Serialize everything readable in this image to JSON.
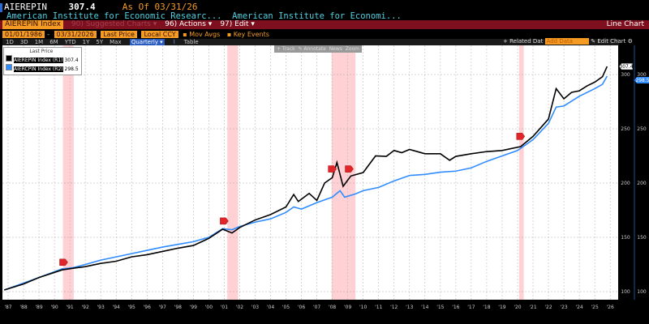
{
  "header": {
    "ticker": "AIEREPIN",
    "last": "307.4",
    "asof_label": "As Of",
    "asof": "03/31/26",
    "desc1": "American Institute for Economic Researc...",
    "desc2": "American Institute for Economi..."
  },
  "menubar": {
    "security": "AIEREPIN Index",
    "suggested": "90) Suggested Charts ▾",
    "actions": "96) Actions ▾",
    "edit": "97) Edit ▾",
    "chart_type": "Line Chart"
  },
  "controls": {
    "start": "01/01/1986",
    "end": "03/31/2026",
    "field": "Last Price",
    "currency": "Local CCY",
    "mov_avgs": "Mov Avgs",
    "key_events": "Key Events",
    "periods": [
      "1D",
      "3D",
      "1M",
      "6M",
      "YTD",
      "1Y",
      "5Y",
      "Max"
    ],
    "frequency": "Quarterly ▾",
    "table": "Table",
    "related": "+ Related Dat",
    "add_data": "Add Data",
    "edit_chart": "✎ Edit Chart"
  },
  "chart_tools": [
    "+ Track",
    "✎ Annotate",
    "News",
    "Zoom"
  ],
  "colors": {
    "series1": "#000000",
    "series2": "#2f8cff",
    "recession": "#ffc8cc",
    "accent": "#f59a23",
    "bar": "#7e0f1e"
  },
  "chart_data": {
    "type": "line",
    "legend_title": "Last Price",
    "legend_placement": "top-left",
    "grid": true,
    "xlim": [
      1986.75,
      2026.25
    ],
    "ylim": [
      93,
      327
    ],
    "x_ticks": [
      "'87",
      "'88",
      "'89",
      "'90",
      "'91",
      "'92",
      "'93",
      "'94",
      "'95",
      "'96",
      "'97",
      "'98",
      "'99",
      "'00",
      "'01",
      "'02",
      "'03",
      "'04",
      "'05",
      "'06",
      "'07",
      "'08",
      "'09",
      "'10",
      "'11",
      "'12",
      "'13",
      "'14",
      "'15",
      "'16",
      "'17",
      "'18",
      "'19",
      "'20",
      "'21",
      "'22",
      "'23",
      "'24",
      "'25",
      "'26"
    ],
    "y_ticks": [
      100,
      150,
      200,
      250,
      300
    ],
    "recessions": [
      [
        1990.55,
        1991.25
      ],
      [
        2001.2,
        2001.9
      ],
      [
        2007.95,
        2009.5
      ],
      [
        2020.1,
        2020.4
      ]
    ],
    "events": [
      {
        "x": 1990.6,
        "y": 127
      },
      {
        "x": 2001.0,
        "y": 165
      },
      {
        "x": 2008.0,
        "y": 213
      },
      {
        "x": 2009.1,
        "y": 213
      },
      {
        "x": 2020.2,
        "y": 243
      }
    ],
    "series": [
      {
        "name": "AIEREPIN Index (R1)",
        "last": "307.4",
        "color": "#000000",
        "points": [
          [
            1986.75,
            101.5
          ],
          [
            1988,
            107
          ],
          [
            1989,
            113
          ],
          [
            1990.5,
            120
          ],
          [
            1991.2,
            121.5
          ],
          [
            1992,
            123
          ],
          [
            1993,
            126
          ],
          [
            1994,
            128
          ],
          [
            1995,
            132
          ],
          [
            1996,
            134
          ],
          [
            1997,
            137
          ],
          [
            1998,
            140
          ],
          [
            1999,
            142.5
          ],
          [
            2000,
            149
          ],
          [
            2000.9,
            157.5
          ],
          [
            2001.5,
            154
          ],
          [
            2002,
            159
          ],
          [
            2003,
            166
          ],
          [
            2004,
            171
          ],
          [
            2005,
            178
          ],
          [
            2005.5,
            189.5
          ],
          [
            2005.8,
            183
          ],
          [
            2006.5,
            190.5
          ],
          [
            2007,
            184
          ],
          [
            2007.5,
            200
          ],
          [
            2008,
            205
          ],
          [
            2008.3,
            219
          ],
          [
            2008.7,
            197
          ],
          [
            2009.2,
            206.5
          ],
          [
            2010,
            209.7
          ],
          [
            2010.8,
            225
          ],
          [
            2011.5,
            224.6
          ],
          [
            2012,
            230
          ],
          [
            2012.5,
            228
          ],
          [
            2013,
            231
          ],
          [
            2014,
            227
          ],
          [
            2015,
            227
          ],
          [
            2015.6,
            221
          ],
          [
            2016,
            224.6
          ],
          [
            2017,
            227
          ],
          [
            2018,
            229
          ],
          [
            2019,
            230
          ],
          [
            2020.2,
            233.6
          ],
          [
            2021,
            243
          ],
          [
            2022,
            259
          ],
          [
            2022.5,
            287
          ],
          [
            2023,
            277.6
          ],
          [
            2023.5,
            283.6
          ],
          [
            2024,
            285
          ],
          [
            2024.5,
            289.5
          ],
          [
            2025,
            293
          ],
          [
            2025.5,
            298
          ],
          [
            2025.8,
            307.4
          ]
        ]
      },
      {
        "name": "AIERCPIN Index (R2)",
        "last": "298.5",
        "color": "#2f8cff",
        "points": [
          [
            1986.75,
            101.5
          ],
          [
            1989,
            113
          ],
          [
            1990.5,
            121
          ],
          [
            1991.2,
            122
          ],
          [
            1992,
            125
          ],
          [
            1993,
            129
          ],
          [
            1994,
            132
          ],
          [
            1995,
            135
          ],
          [
            1996,
            138
          ],
          [
            1997,
            141
          ],
          [
            1998,
            143.5
          ],
          [
            1999,
            146
          ],
          [
            2000,
            150
          ],
          [
            2000.9,
            158
          ],
          [
            2001.5,
            157
          ],
          [
            2002,
            160
          ],
          [
            2003,
            164
          ],
          [
            2004,
            167
          ],
          [
            2005,
            173
          ],
          [
            2005.5,
            178
          ],
          [
            2006,
            176
          ],
          [
            2007,
            182
          ],
          [
            2008,
            187
          ],
          [
            2008.5,
            193
          ],
          [
            2008.8,
            187
          ],
          [
            2009.5,
            190
          ],
          [
            2010,
            193
          ],
          [
            2011,
            196
          ],
          [
            2012,
            202
          ],
          [
            2013,
            207
          ],
          [
            2014,
            208
          ],
          [
            2015,
            210
          ],
          [
            2016,
            211
          ],
          [
            2017,
            214
          ],
          [
            2018,
            220
          ],
          [
            2019,
            225
          ],
          [
            2020,
            230
          ],
          [
            2021,
            240
          ],
          [
            2022,
            255
          ],
          [
            2022.5,
            270
          ],
          [
            2023,
            271
          ],
          [
            2024,
            280
          ],
          [
            2025,
            287
          ],
          [
            2025.5,
            291
          ],
          [
            2025.8,
            298.5
          ]
        ]
      }
    ]
  }
}
